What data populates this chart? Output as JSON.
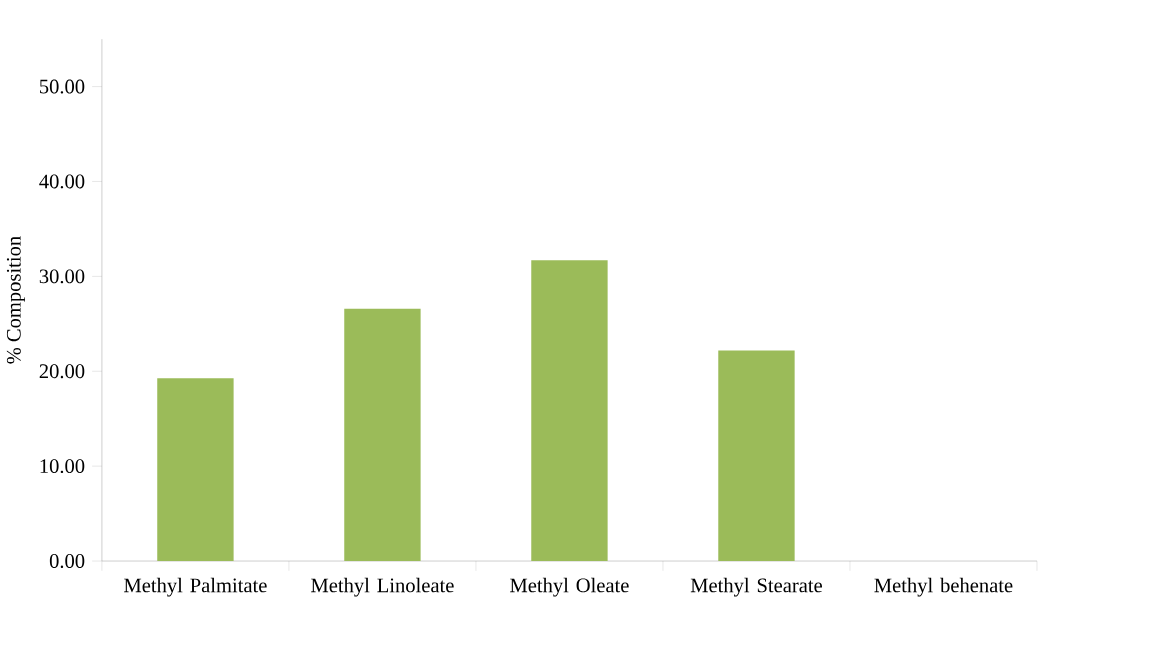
{
  "chart_data": {
    "type": "bar",
    "ylabel": "% Composition",
    "categories": [
      "Methyl Palmitate",
      "Methyl Linoleate",
      "Methyl Oleate",
      "Methyl Stearate",
      "Methyl behenate"
    ],
    "values": [
      19.25,
      26.6,
      31.7,
      22.2,
      0
    ],
    "color": "#9bbb59",
    "ylim": [
      0,
      55
    ],
    "yticks": [
      {
        "value": 0,
        "label": "0.00"
      },
      {
        "value": 10,
        "label": "10.00"
      },
      {
        "value": 20,
        "label": "20.00"
      },
      {
        "value": 30,
        "label": "30.00"
      },
      {
        "value": 40,
        "label": "40.00"
      },
      {
        "value": 50,
        "label": "50.00"
      }
    ],
    "grid": false
  }
}
